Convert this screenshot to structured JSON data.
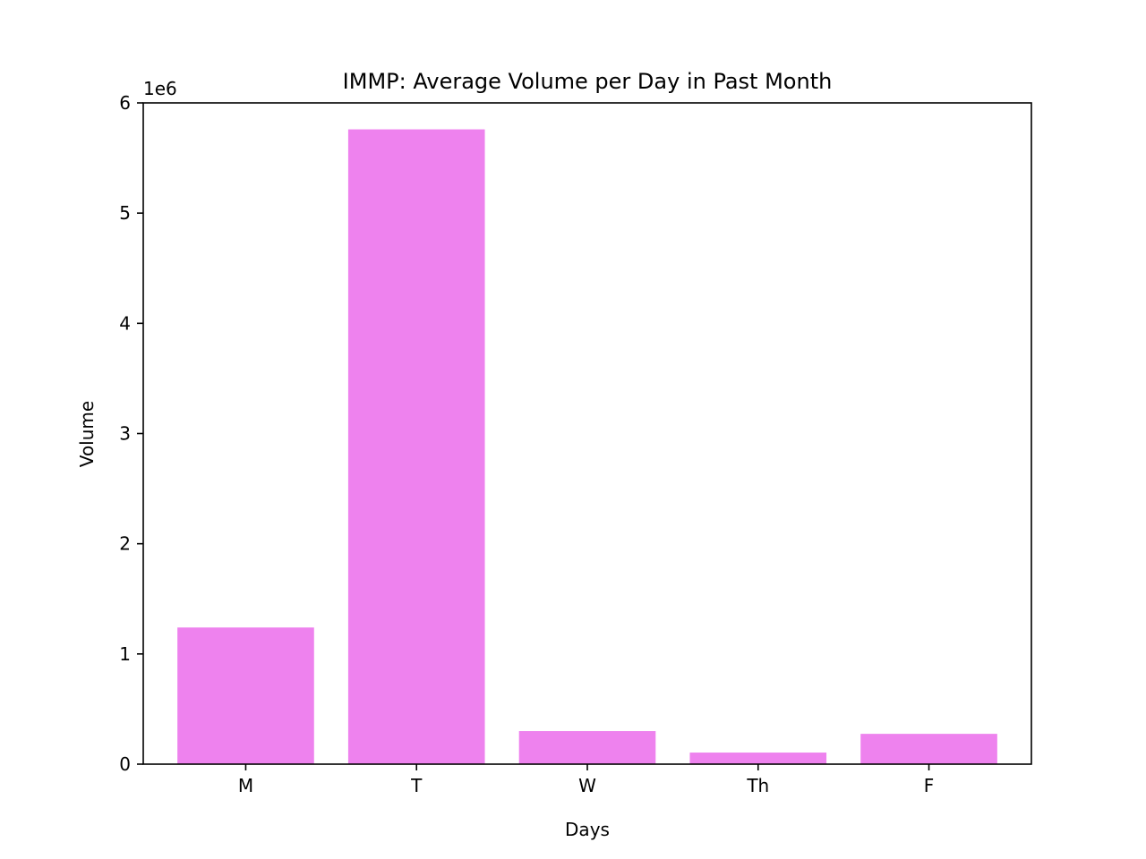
{
  "chart_data": {
    "type": "bar",
    "title": "IMMP: Average Volume per Day in Past Month",
    "xlabel": "Days",
    "ylabel": "Volume",
    "categories": [
      "M",
      "T",
      "W",
      "Th",
      "F"
    ],
    "values": [
      1240000,
      5760000,
      300000,
      105000,
      275000
    ],
    "ylim": [
      0,
      6000000
    ],
    "yticks": [
      0,
      1,
      2,
      3,
      4,
      5,
      6
    ],
    "y_offset_label": "1e6",
    "bar_color": "#ee82ee",
    "grid": false,
    "legend": "none"
  }
}
